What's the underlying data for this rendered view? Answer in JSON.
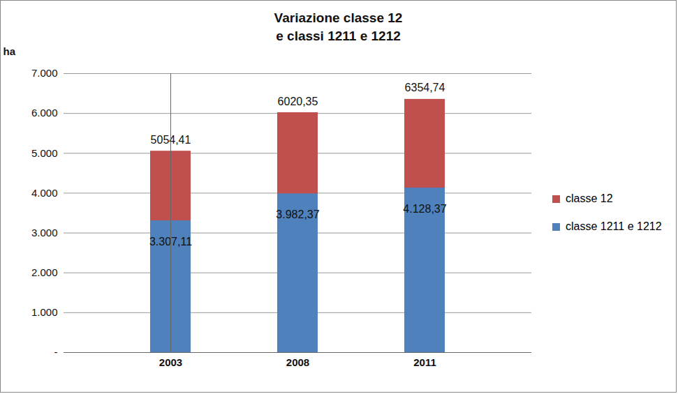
{
  "chart_data": {
    "type": "bar",
    "title": "Variazione classe 12\ne classi 1211 e 1212",
    "y_label": "ha",
    "categories": [
      "2003",
      "2008",
      "2011"
    ],
    "stacked": false,
    "data_labels": true,
    "grid": true,
    "legend": "right",
    "ylim": [
      0,
      7000
    ],
    "yticks": [
      {
        "value": 0,
        "label": "-"
      },
      {
        "value": 1000,
        "label": "1.000"
      },
      {
        "value": 2000,
        "label": "2.000"
      },
      {
        "value": 3000,
        "label": "3.000"
      },
      {
        "value": 4000,
        "label": "4.000"
      },
      {
        "value": 5000,
        "label": "5.000"
      },
      {
        "value": 6000,
        "label": "6.000"
      },
      {
        "value": 7000,
        "label": "7.000"
      }
    ],
    "series": [
      {
        "name": "classe 12",
        "color": "#c0504d",
        "values": [
          5054.41,
          6020.35,
          6354.74
        ],
        "value_labels": [
          "5054,41",
          "6020,35",
          "6354,74"
        ]
      },
      {
        "name": "classe 1211 e 1212",
        "color": "#4f81bd",
        "values": [
          3307.11,
          3982.37,
          4128.37
        ],
        "value_labels": [
          "3.307,11",
          "3.982,37",
          "4.128,37"
        ]
      }
    ]
  }
}
